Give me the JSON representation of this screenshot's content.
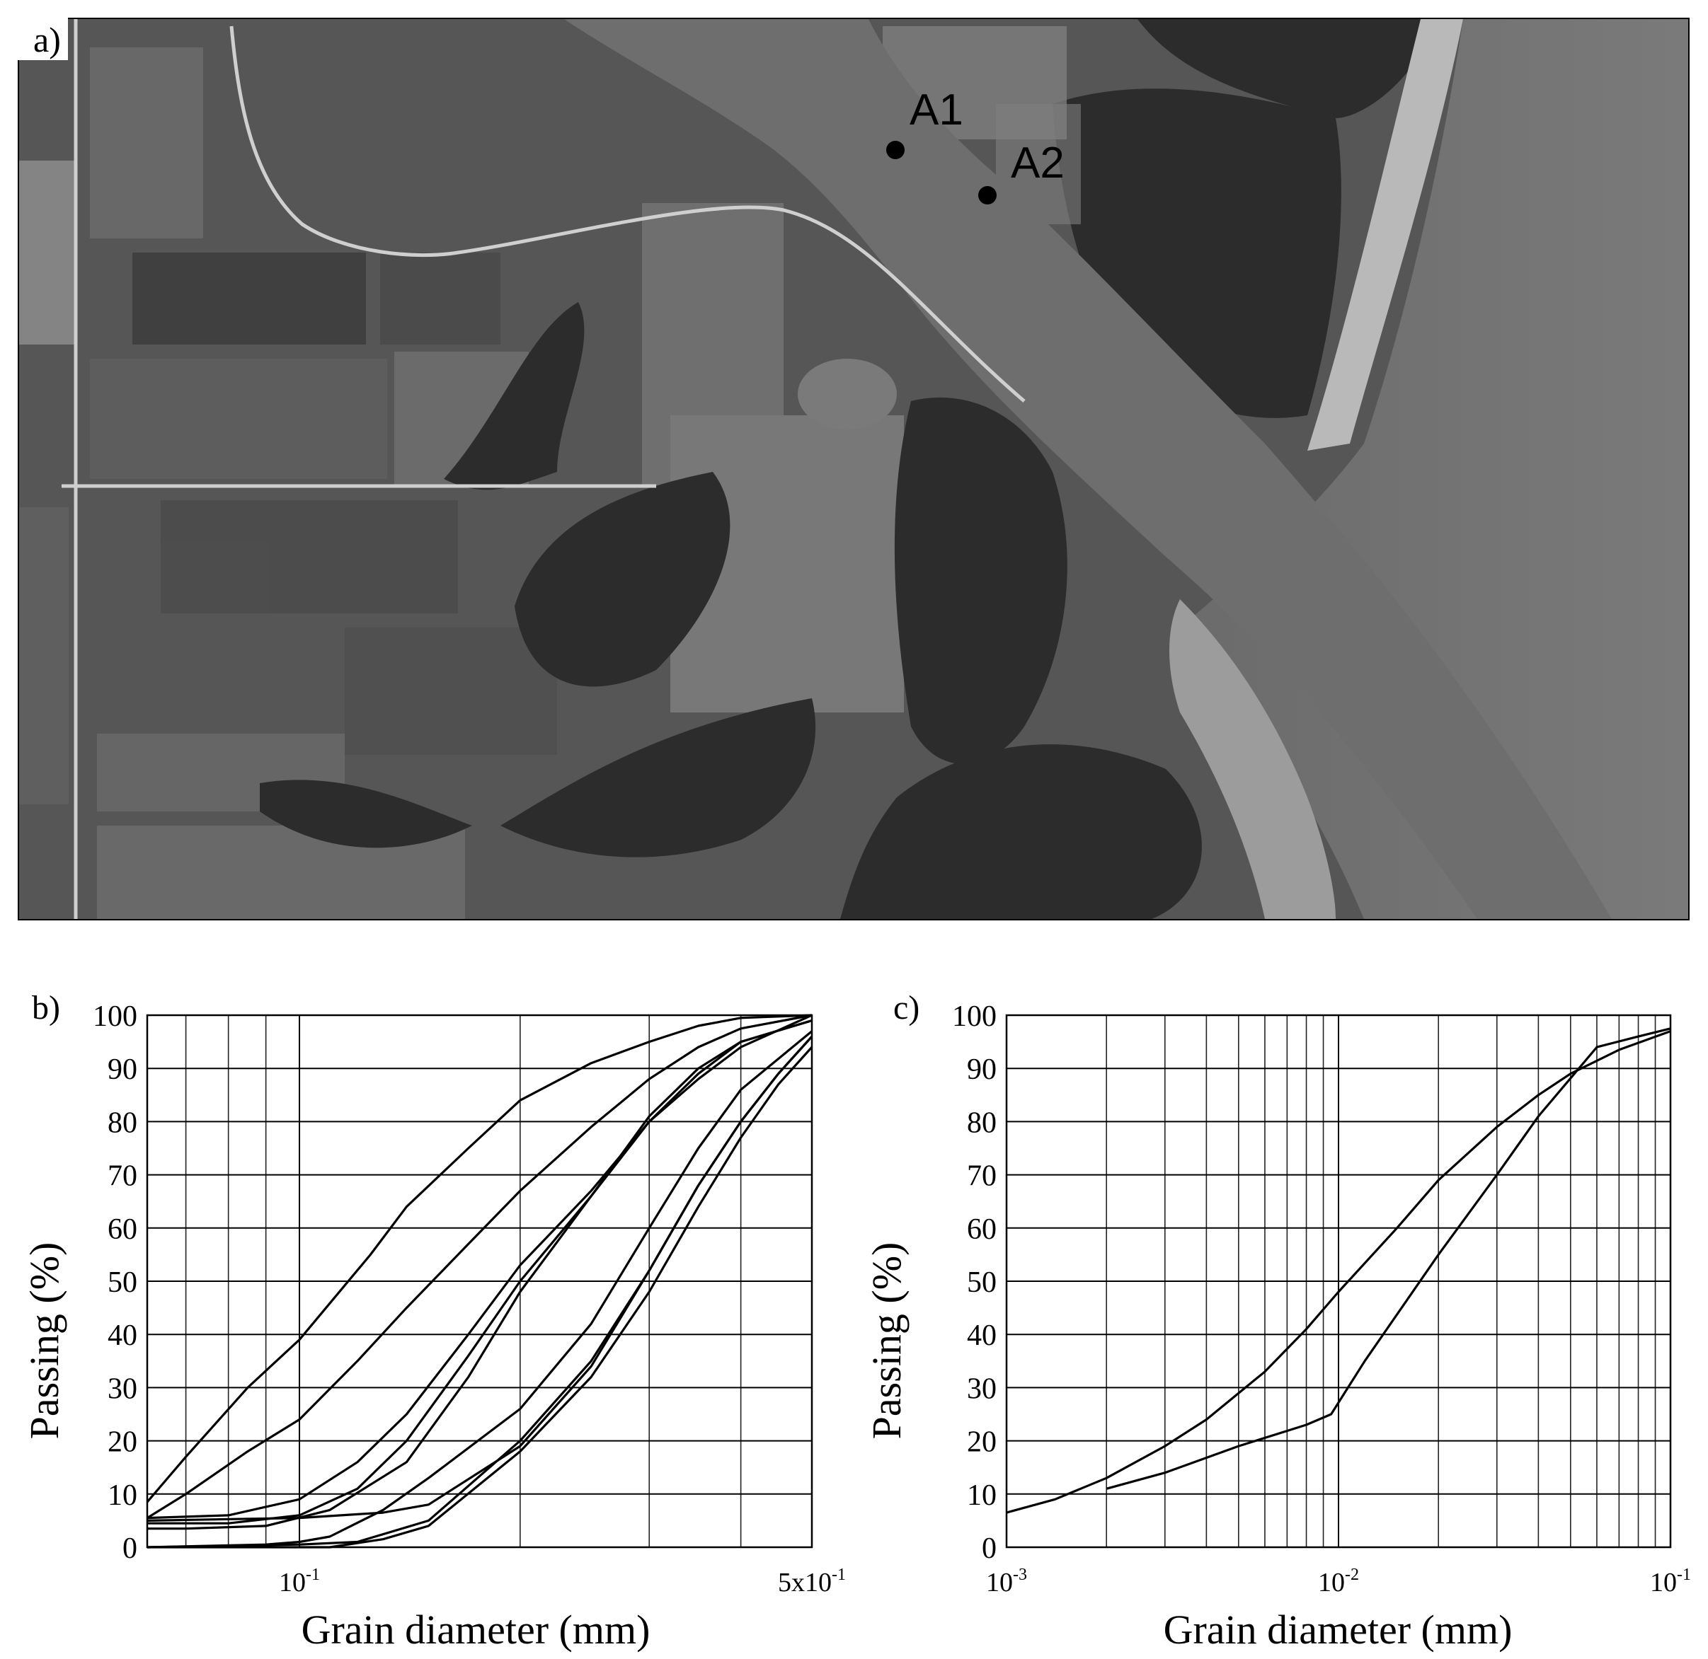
{
  "figure": {
    "panels": {
      "a": "a)",
      "b": "b)",
      "c": "c)"
    },
    "sites": [
      {
        "id": "A1",
        "label": "A1"
      },
      {
        "id": "A2",
        "label": "A2"
      }
    ]
  },
  "chart_data": [
    {
      "panel": "b)",
      "type": "line",
      "xscale": "log",
      "xlabel": "Grain diameter (mm)",
      "ylabel": "Passing (%)",
      "xlim": [
        0.062,
        0.5
      ],
      "ylim": [
        0,
        100
      ],
      "ytick_labels": [
        "0",
        "10",
        "20",
        "30",
        "40",
        "50",
        "60",
        "70",
        "80",
        "90",
        "100"
      ],
      "xtick_labels": [
        {
          "value": 0.1,
          "base": "10",
          "exp": "-1"
        },
        {
          "value": 0.5,
          "base": "5x10",
          "exp": "-1"
        }
      ],
      "grid": true,
      "series": [
        {
          "points": [
            [
              0.062,
              8.5
            ],
            [
              0.07,
              17
            ],
            [
              0.085,
              30
            ],
            [
              0.1,
              39
            ],
            [
              0.125,
              55
            ],
            [
              0.14,
              64
            ],
            [
              0.17,
              75
            ],
            [
              0.2,
              84
            ],
            [
              0.25,
              91
            ],
            [
              0.3,
              95
            ],
            [
              0.35,
              98
            ],
            [
              0.4,
              99.5
            ],
            [
              0.5,
              100
            ]
          ]
        },
        {
          "points": [
            [
              0.062,
              5.5
            ],
            [
              0.07,
              10
            ],
            [
              0.085,
              18
            ],
            [
              0.1,
              24
            ],
            [
              0.12,
              35
            ],
            [
              0.14,
              45
            ],
            [
              0.17,
              57
            ],
            [
              0.2,
              67
            ],
            [
              0.25,
              79
            ],
            [
              0.3,
              88
            ],
            [
              0.35,
              94
            ],
            [
              0.4,
              97.5
            ],
            [
              0.5,
              100
            ]
          ]
        },
        {
          "points": [
            [
              0.062,
              5.5
            ],
            [
              0.08,
              6
            ],
            [
              0.1,
              9
            ],
            [
              0.12,
              16
            ],
            [
              0.14,
              25
            ],
            [
              0.17,
              40
            ],
            [
              0.2,
              53
            ],
            [
              0.25,
              67
            ],
            [
              0.3,
              80
            ],
            [
              0.35,
              88
            ],
            [
              0.4,
              94
            ],
            [
              0.5,
              100
            ]
          ]
        },
        {
          "points": [
            [
              0.062,
              4.5
            ],
            [
              0.08,
              4.5
            ],
            [
              0.1,
              6
            ],
            [
              0.12,
              11
            ],
            [
              0.14,
              20
            ],
            [
              0.17,
              36
            ],
            [
              0.2,
              50
            ],
            [
              0.25,
              66
            ],
            [
              0.3,
              80
            ],
            [
              0.35,
              89
            ],
            [
              0.4,
              95
            ],
            [
              0.5,
              99
            ]
          ]
        },
        {
          "points": [
            [
              0.062,
              3.5
            ],
            [
              0.07,
              3.5
            ],
            [
              0.09,
              4
            ],
            [
              0.11,
              7
            ],
            [
              0.14,
              16
            ],
            [
              0.17,
              32
            ],
            [
              0.2,
              48
            ],
            [
              0.25,
              66
            ],
            [
              0.3,
              81
            ],
            [
              0.35,
              90
            ],
            [
              0.4,
              95
            ],
            [
              0.5,
              99
            ]
          ]
        },
        {
          "points": [
            [
              0.062,
              5
            ],
            [
              0.1,
              5.5
            ],
            [
              0.13,
              6.5
            ],
            [
              0.15,
              8
            ],
            [
              0.2,
              19
            ],
            [
              0.25,
              34
            ],
            [
              0.3,
              52
            ],
            [
              0.35,
              68
            ],
            [
              0.4,
              80
            ],
            [
              0.45,
              89
            ],
            [
              0.5,
              96
            ]
          ]
        },
        {
          "points": [
            [
              0.062,
              0
            ],
            [
              0.09,
              0.5
            ],
            [
              0.1,
              1
            ],
            [
              0.11,
              2
            ],
            [
              0.13,
              7
            ],
            [
              0.15,
              13
            ],
            [
              0.2,
              26
            ],
            [
              0.25,
              42
            ],
            [
              0.3,
              60
            ],
            [
              0.35,
              75
            ],
            [
              0.4,
              86
            ],
            [
              0.5,
              97
            ]
          ]
        },
        {
          "points": [
            [
              0.062,
              0
            ],
            [
              0.1,
              0.5
            ],
            [
              0.12,
              1
            ],
            [
              0.15,
              5
            ],
            [
              0.2,
              20
            ],
            [
              0.25,
              35
            ],
            [
              0.3,
              52
            ],
            [
              0.35,
              68
            ],
            [
              0.4,
              80
            ],
            [
              0.45,
              89
            ],
            [
              0.5,
              96
            ]
          ]
        },
        {
          "points": [
            [
              0.062,
              0
            ],
            [
              0.11,
              0
            ],
            [
              0.13,
              1.5
            ],
            [
              0.15,
              4
            ],
            [
              0.2,
              18
            ],
            [
              0.25,
              32
            ],
            [
              0.3,
              48
            ],
            [
              0.35,
              64
            ],
            [
              0.4,
              77
            ],
            [
              0.45,
              87
            ],
            [
              0.5,
              94
            ]
          ]
        }
      ]
    },
    {
      "panel": "c)",
      "type": "line",
      "xscale": "log",
      "xlabel": "Grain diameter (mm)",
      "ylabel": "Passing (%)",
      "xlim": [
        0.001,
        0.1
      ],
      "ylim": [
        0,
        100
      ],
      "ytick_labels": [
        "0",
        "10",
        "20",
        "30",
        "40",
        "50",
        "60",
        "70",
        "80",
        "90",
        "100"
      ],
      "xtick_labels": [
        {
          "value": 0.001,
          "base": "10",
          "exp": "-3"
        },
        {
          "value": 0.01,
          "base": "10",
          "exp": "-2"
        },
        {
          "value": 0.1,
          "base": "10",
          "exp": "-1"
        }
      ],
      "grid": true,
      "series": [
        {
          "points": [
            [
              0.001,
              6.5
            ],
            [
              0.0014,
              9
            ],
            [
              0.002,
              13
            ],
            [
              0.003,
              19
            ],
            [
              0.004,
              24
            ],
            [
              0.006,
              33
            ],
            [
              0.008,
              41
            ],
            [
              0.01,
              48
            ],
            [
              0.015,
              60
            ],
            [
              0.02,
              69
            ],
            [
              0.03,
              79
            ],
            [
              0.04,
              85
            ],
            [
              0.05,
              89
            ],
            [
              0.07,
              93.5
            ],
            [
              0.1,
              97
            ]
          ]
        },
        {
          "points": [
            [
              0.002,
              11
            ],
            [
              0.003,
              14
            ],
            [
              0.005,
              19
            ],
            [
              0.008,
              23
            ],
            [
              0.0095,
              25
            ],
            [
              0.012,
              35
            ],
            [
              0.02,
              55
            ],
            [
              0.03,
              70
            ],
            [
              0.04,
              81
            ],
            [
              0.06,
              94
            ],
            [
              0.08,
              96
            ],
            [
              0.1,
              97.5
            ]
          ]
        }
      ]
    }
  ]
}
